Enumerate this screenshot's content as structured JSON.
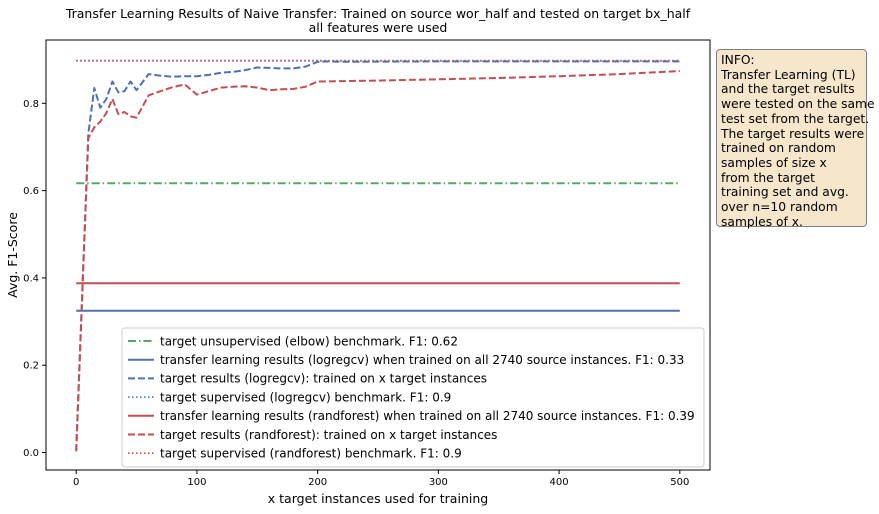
{
  "chart_data": {
    "type": "line",
    "title": "Transfer Learning Results of Naive Transfer: Trained on source wor_half and tested on target bx_half",
    "subtitle": "all features were used",
    "xlabel": "x target instances used for training",
    "ylabel": "Avg. F1-Score",
    "xlim": [
      -25,
      525
    ],
    "ylim": [
      -0.04,
      0.945
    ],
    "xticks": [
      0,
      100,
      200,
      300,
      400,
      500
    ],
    "yticks": [
      0.0,
      0.2,
      0.4,
      0.6,
      0.8
    ],
    "xtick_labels": [
      "0",
      "100",
      "200",
      "300",
      "400",
      "500"
    ],
    "ytick_labels": [
      "0.0",
      "0.2",
      "0.4",
      "0.6",
      "0.8"
    ],
    "grid": false,
    "legend_position": "lower-right",
    "series": [
      {
        "name": "target unsupervised (elbow) benchmark. F1: 0.62",
        "color": "#55a868",
        "dash": "dashdot",
        "x": [
          0,
          500
        ],
        "y": [
          0.617,
          0.617
        ]
      },
      {
        "name": "transfer learning results (logregcv) when trained on all 2740 source instances. F1: 0.33",
        "color": "#4c72b0",
        "dash": "solid",
        "x": [
          0,
          500
        ],
        "y": [
          0.325,
          0.325
        ]
      },
      {
        "name": "target results (logregcv): trained on x target instances",
        "color": "#4c72b0",
        "dash": "dashed",
        "x": [
          0,
          10,
          15,
          20,
          25,
          30,
          35,
          40,
          45,
          50,
          60,
          70,
          80,
          90,
          100,
          110,
          120,
          130,
          140,
          150,
          160,
          170,
          180,
          190,
          200,
          210,
          220,
          300,
          400,
          500
        ],
        "y": [
          0.003,
          0.73,
          0.835,
          0.79,
          0.81,
          0.85,
          0.825,
          0.828,
          0.85,
          0.83,
          0.867,
          0.863,
          0.861,
          0.862,
          0.862,
          0.865,
          0.87,
          0.872,
          0.876,
          0.882,
          0.881,
          0.88,
          0.88,
          0.884,
          0.895,
          0.896,
          0.895,
          0.896,
          0.896,
          0.896
        ]
      },
      {
        "name": "target supervised (logregcv) benchmark. F1: 0.9",
        "color": "#4c72b0",
        "dash": "dotted",
        "x": [
          0,
          500
        ],
        "y": [
          0.897,
          0.897
        ]
      },
      {
        "name": "transfer learning results (randforest) when trained on all 2740 source instances. F1: 0.39",
        "color": "#c44e52",
        "dash": "solid",
        "x": [
          0,
          500
        ],
        "y": [
          0.388,
          0.388
        ]
      },
      {
        "name": "target results (randforest): trained on x target instances",
        "color": "#c44e52",
        "dash": "dashed",
        "x": [
          0,
          10,
          15,
          20,
          25,
          30,
          35,
          40,
          45,
          50,
          60,
          70,
          80,
          90,
          100,
          110,
          120,
          130,
          140,
          150,
          160,
          170,
          180,
          190,
          200,
          250,
          300,
          350,
          400,
          450,
          500
        ],
        "y": [
          0.003,
          0.72,
          0.745,
          0.758,
          0.778,
          0.81,
          0.775,
          0.78,
          0.77,
          0.767,
          0.818,
          0.828,
          0.837,
          0.843,
          0.82,
          0.828,
          0.836,
          0.838,
          0.839,
          0.836,
          0.83,
          0.832,
          0.833,
          0.838,
          0.85,
          0.852,
          0.855,
          0.858,
          0.862,
          0.867,
          0.874
        ]
      },
      {
        "name": "target supervised (randforest) benchmark. F1: 0.9",
        "color": "#c44e52",
        "dash": "dotted",
        "x": [
          0,
          500
        ],
        "y": [
          0.898,
          0.898
        ]
      }
    ]
  },
  "info_box": {
    "lines": [
      "INFO:",
      "Transfer Learning (TL)",
      "and the target results",
      "were tested on the same",
      "test set from the target.",
      "The target results were",
      "trained on random",
      "samples of size x",
      "from the target",
      "training set and avg.",
      "over n=10 random",
      "samples of x."
    ]
  }
}
